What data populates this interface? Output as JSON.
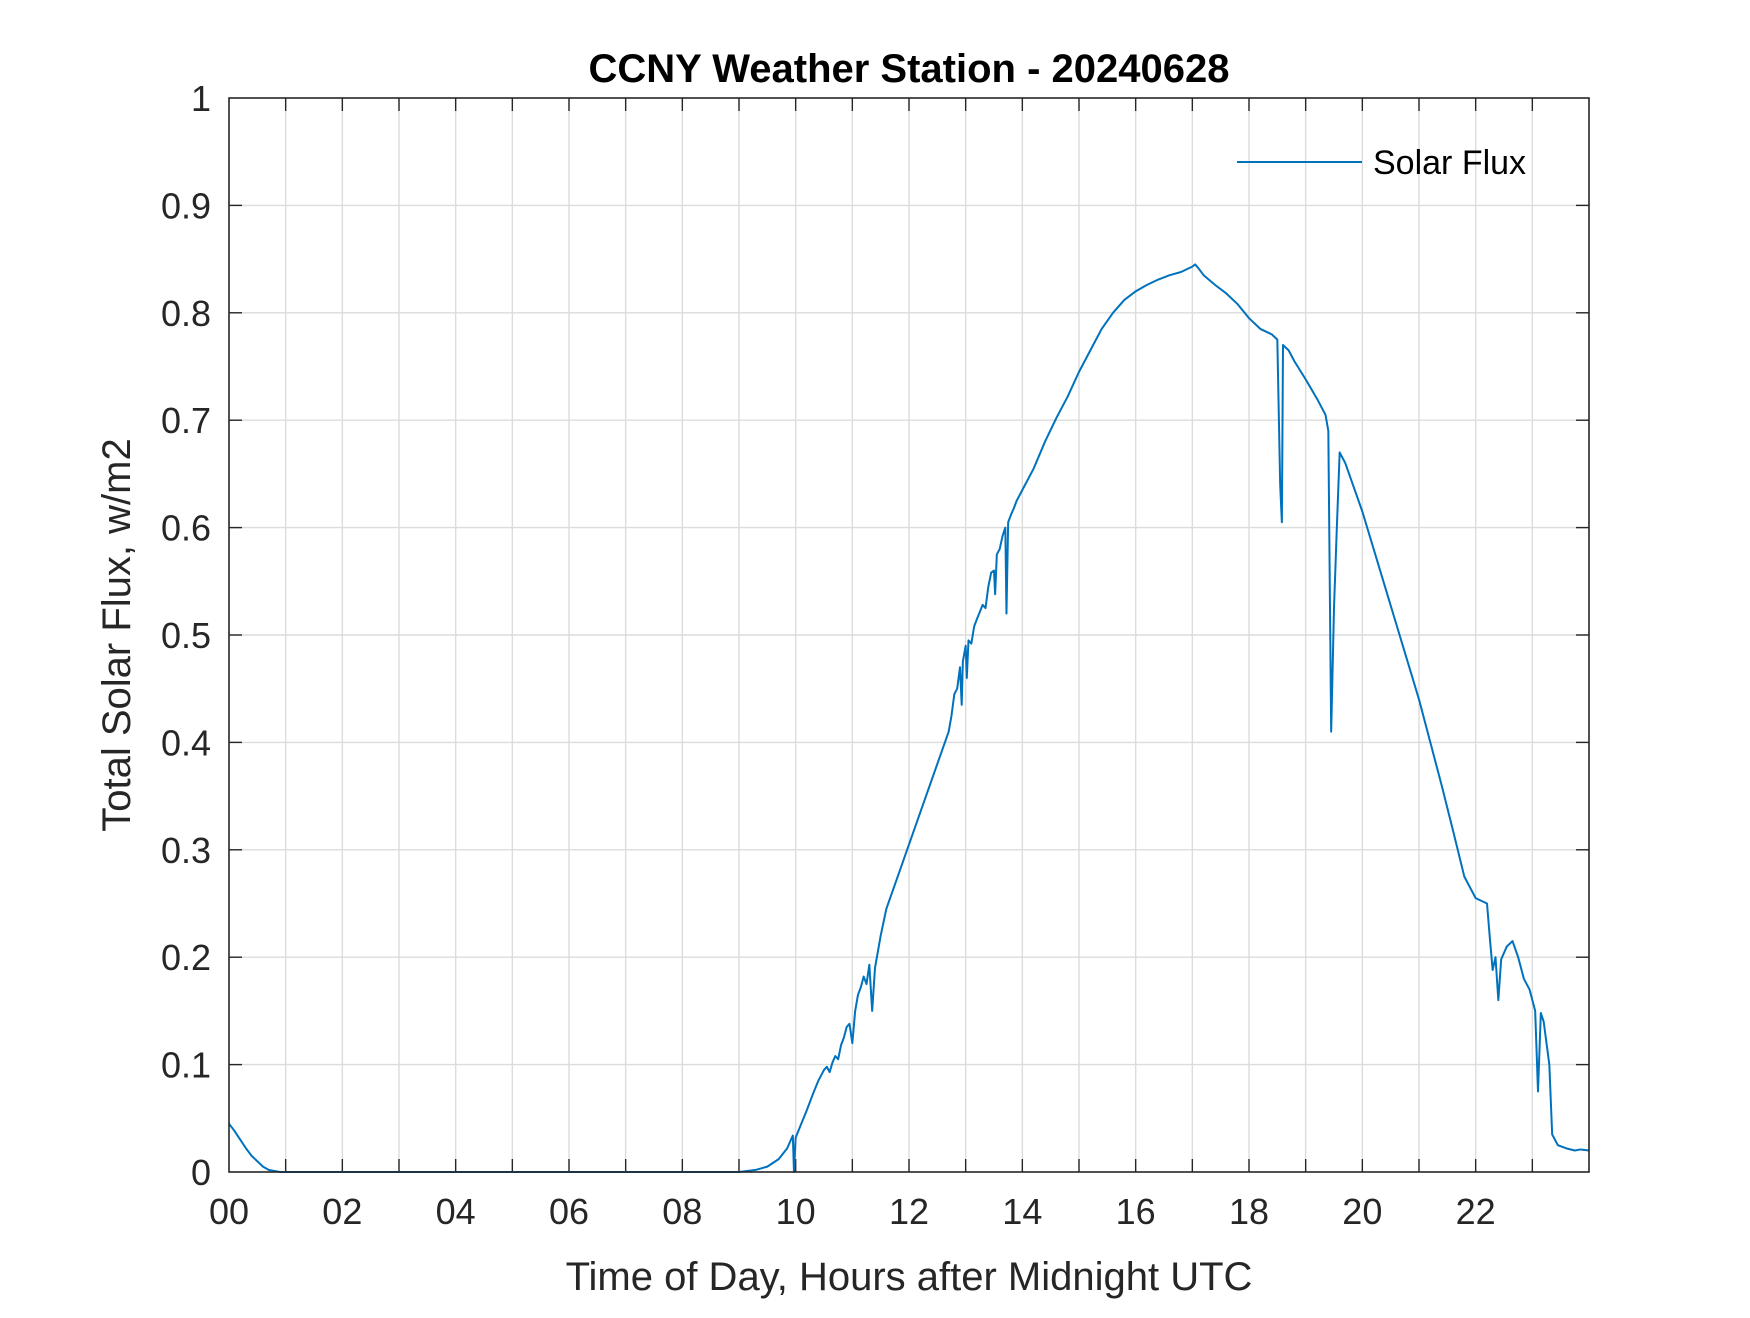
{
  "chart_data": {
    "type": "line",
    "title": "CCNY Weather Station - 20240628",
    "xlabel": "Time of Day, Hours after Midnight UTC",
    "ylabel": "Total Solar Flux, w/m2",
    "xlim": [
      0,
      24
    ],
    "ylim": [
      0,
      1
    ],
    "xticks": [
      0,
      2,
      4,
      6,
      8,
      10,
      12,
      14,
      16,
      18,
      20,
      22
    ],
    "xtick_labels": [
      "00",
      "02",
      "04",
      "06",
      "08",
      "10",
      "12",
      "14",
      "16",
      "18",
      "20",
      "22"
    ],
    "yticks": [
      0,
      0.1,
      0.2,
      0.3,
      0.4,
      0.5,
      0.6,
      0.7,
      0.8,
      0.9,
      1
    ],
    "ytick_labels": [
      "0",
      "0.1",
      "0.2",
      "0.3",
      "0.4",
      "0.5",
      "0.6",
      "0.7",
      "0.8",
      "0.9",
      "1"
    ],
    "grid": true,
    "legend_position": "top-right",
    "series": [
      {
        "name": "Solar Flux",
        "color": "#0072BD",
        "points": [
          [
            0.0,
            0.045
          ],
          [
            0.1,
            0.038
          ],
          [
            0.2,
            0.03
          ],
          [
            0.3,
            0.022
          ],
          [
            0.4,
            0.015
          ],
          [
            0.5,
            0.01
          ],
          [
            0.6,
            0.005
          ],
          [
            0.7,
            0.002
          ],
          [
            0.8,
            0.001
          ],
          [
            0.9,
            0.0
          ],
          [
            1.0,
            0.0
          ],
          [
            9.0,
            0.0
          ],
          [
            9.3,
            0.002
          ],
          [
            9.5,
            0.005
          ],
          [
            9.7,
            0.012
          ],
          [
            9.85,
            0.022
          ],
          [
            9.95,
            0.034
          ],
          [
            9.97,
            0.0
          ],
          [
            10.0,
            0.032
          ],
          [
            10.1,
            0.045
          ],
          [
            10.2,
            0.058
          ],
          [
            10.3,
            0.072
          ],
          [
            10.4,
            0.085
          ],
          [
            10.5,
            0.095
          ],
          [
            10.55,
            0.098
          ],
          [
            10.6,
            0.093
          ],
          [
            10.65,
            0.102
          ],
          [
            10.7,
            0.108
          ],
          [
            10.75,
            0.105
          ],
          [
            10.8,
            0.118
          ],
          [
            10.85,
            0.125
          ],
          [
            10.9,
            0.135
          ],
          [
            10.95,
            0.138
          ],
          [
            11.0,
            0.12
          ],
          [
            11.05,
            0.15
          ],
          [
            11.1,
            0.165
          ],
          [
            11.15,
            0.172
          ],
          [
            11.2,
            0.182
          ],
          [
            11.25,
            0.175
          ],
          [
            11.3,
            0.193
          ],
          [
            11.35,
            0.15
          ],
          [
            11.4,
            0.19
          ],
          [
            11.45,
            0.205
          ],
          [
            11.5,
            0.22
          ],
          [
            11.6,
            0.245
          ],
          [
            11.8,
            0.275
          ],
          [
            12.0,
            0.305
          ],
          [
            12.2,
            0.335
          ],
          [
            12.4,
            0.365
          ],
          [
            12.6,
            0.395
          ],
          [
            12.7,
            0.41
          ],
          [
            12.75,
            0.425
          ],
          [
            12.8,
            0.445
          ],
          [
            12.85,
            0.45
          ],
          [
            12.9,
            0.47
          ],
          [
            12.93,
            0.435
          ],
          [
            12.95,
            0.475
          ],
          [
            13.0,
            0.49
          ],
          [
            13.02,
            0.46
          ],
          [
            13.05,
            0.495
          ],
          [
            13.1,
            0.492
          ],
          [
            13.15,
            0.508
          ],
          [
            13.2,
            0.515
          ],
          [
            13.3,
            0.528
          ],
          [
            13.35,
            0.525
          ],
          [
            13.4,
            0.545
          ],
          [
            13.45,
            0.558
          ],
          [
            13.5,
            0.56
          ],
          [
            13.52,
            0.538
          ],
          [
            13.55,
            0.575
          ],
          [
            13.6,
            0.58
          ],
          [
            13.65,
            0.592
          ],
          [
            13.7,
            0.6
          ],
          [
            13.72,
            0.52
          ],
          [
            13.75,
            0.605
          ],
          [
            13.8,
            0.612
          ],
          [
            13.85,
            0.618
          ],
          [
            13.9,
            0.625
          ],
          [
            14.0,
            0.635
          ],
          [
            14.2,
            0.655
          ],
          [
            14.4,
            0.68
          ],
          [
            14.6,
            0.702
          ],
          [
            14.8,
            0.722
          ],
          [
            15.0,
            0.745
          ],
          [
            15.2,
            0.765
          ],
          [
            15.4,
            0.785
          ],
          [
            15.6,
            0.8
          ],
          [
            15.8,
            0.812
          ],
          [
            16.0,
            0.82
          ],
          [
            16.2,
            0.826
          ],
          [
            16.4,
            0.831
          ],
          [
            16.6,
            0.835
          ],
          [
            16.8,
            0.838
          ],
          [
            17.0,
            0.843
          ],
          [
            17.05,
            0.845
          ],
          [
            17.1,
            0.842
          ],
          [
            17.2,
            0.835
          ],
          [
            17.4,
            0.826
          ],
          [
            17.6,
            0.818
          ],
          [
            17.8,
            0.808
          ],
          [
            18.0,
            0.795
          ],
          [
            18.2,
            0.785
          ],
          [
            18.4,
            0.78
          ],
          [
            18.5,
            0.775
          ],
          [
            18.55,
            0.64
          ],
          [
            18.58,
            0.605
          ],
          [
            18.6,
            0.77
          ],
          [
            18.7,
            0.765
          ],
          [
            18.8,
            0.755
          ],
          [
            19.0,
            0.738
          ],
          [
            19.2,
            0.72
          ],
          [
            19.35,
            0.705
          ],
          [
            19.4,
            0.69
          ],
          [
            19.45,
            0.41
          ],
          [
            19.5,
            0.525
          ],
          [
            19.55,
            0.6
          ],
          [
            19.6,
            0.67
          ],
          [
            19.7,
            0.66
          ],
          [
            19.8,
            0.645
          ],
          [
            20.0,
            0.615
          ],
          [
            20.2,
            0.58
          ],
          [
            20.4,
            0.545
          ],
          [
            20.6,
            0.51
          ],
          [
            20.8,
            0.475
          ],
          [
            21.0,
            0.44
          ],
          [
            21.2,
            0.4
          ],
          [
            21.4,
            0.36
          ],
          [
            21.6,
            0.318
          ],
          [
            21.8,
            0.275
          ],
          [
            22.0,
            0.255
          ],
          [
            22.2,
            0.25
          ],
          [
            22.25,
            0.218
          ],
          [
            22.3,
            0.188
          ],
          [
            22.35,
            0.2
          ],
          [
            22.4,
            0.16
          ],
          [
            22.45,
            0.198
          ],
          [
            22.55,
            0.21
          ],
          [
            22.65,
            0.215
          ],
          [
            22.75,
            0.2
          ],
          [
            22.85,
            0.18
          ],
          [
            22.95,
            0.17
          ],
          [
            23.05,
            0.15
          ],
          [
            23.1,
            0.075
          ],
          [
            23.15,
            0.148
          ],
          [
            23.2,
            0.14
          ],
          [
            23.3,
            0.1
          ],
          [
            23.35,
            0.035
          ],
          [
            23.45,
            0.025
          ],
          [
            23.6,
            0.022
          ],
          [
            23.75,
            0.02
          ],
          [
            23.85,
            0.021
          ],
          [
            24.0,
            0.02
          ]
        ]
      }
    ]
  }
}
